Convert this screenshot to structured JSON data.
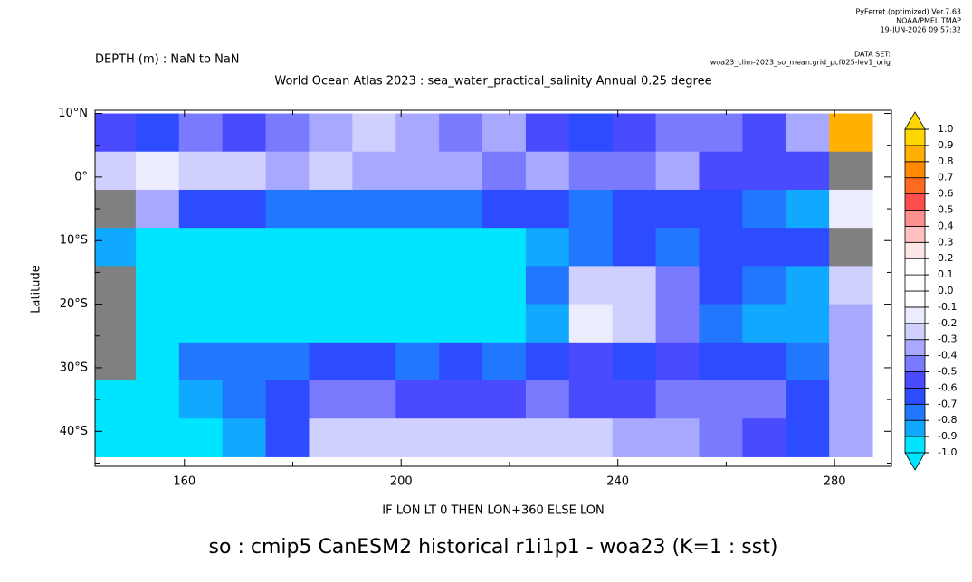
{
  "chart_data": {
    "type": "heatmap",
    "header": [
      "PyFerret (optimized) Ver.7.63",
      "NOAA/PMEL TMAP",
      "19-JUN-2026 09:57:32"
    ],
    "dataset_label": "DATA SET:",
    "dataset": "woa23_clim-2023_so_mean.grid_pcf025-lev1_orig",
    "subtitle": "DEPTH (m) : NaN to NaN",
    "title": "World Ocean Atlas 2023 : sea_water_practical_salinity Annual  0.25 degree",
    "ylabel": "Latitude",
    "xlabel": "IF LON LT 0 THEN LON+360 ELSE LON",
    "caption": "so : cmip5 CanESM2 historical r1i1p1 - woa23  (K=1 : sst)",
    "xlim": [
      143.5,
      290.5
    ],
    "ylim": [
      -45.5,
      10.5
    ],
    "xticks": [
      160,
      200,
      240,
      280
    ],
    "xminor_ticks": [
      180,
      220,
      260
    ],
    "yticks": [
      {
        "value": 10,
        "label": "10°N"
      },
      {
        "value": 0,
        "label": "0°"
      },
      {
        "value": -10,
        "label": "10°S"
      },
      {
        "value": -20,
        "label": "20°S"
      },
      {
        "value": -30,
        "label": "30°S"
      },
      {
        "value": -40,
        "label": "40°S"
      }
    ],
    "yminor_ticks": [
      5,
      -5,
      -15,
      -25,
      -35,
      -45
    ],
    "x": [
      147,
      155,
      163,
      171,
      179,
      187,
      195,
      203,
      211,
      219,
      227,
      235,
      243,
      251,
      259,
      267,
      275,
      283
    ],
    "y": [
      7,
      1,
      -5,
      -11,
      -17,
      -23,
      -29,
      -35,
      -41
    ],
    "cell_size": [
      8,
      6
    ],
    "land_color": "#808080",
    "values": [
      [
        -0.5,
        -0.6,
        -0.4,
        -0.5,
        -0.4,
        -0.3,
        -0.2,
        -0.3,
        -0.4,
        -0.3,
        -0.5,
        -0.6,
        -0.5,
        -0.4,
        -0.4,
        -0.5,
        -0.3,
        0.9
      ],
      [
        -0.2,
        -0.1,
        -0.2,
        -0.2,
        -0.3,
        -0.2,
        -0.3,
        -0.3,
        -0.3,
        -0.4,
        -0.3,
        -0.4,
        -0.4,
        -0.3,
        -0.5,
        -0.5,
        -0.5,
        null
      ],
      [
        null,
        -0.3,
        -0.6,
        -0.6,
        -0.7,
        -0.7,
        -0.7,
        -0.7,
        -0.7,
        -0.6,
        -0.6,
        -0.7,
        -0.6,
        -0.6,
        -0.6,
        -0.7,
        -0.8,
        -0.1
      ],
      [
        -0.8,
        -0.9,
        -1.0,
        -1.0,
        -1.0,
        -1.0,
        -1.0,
        -1.0,
        -1.0,
        -1.0,
        -0.8,
        -0.7,
        -0.6,
        -0.7,
        -0.6,
        -0.6,
        -0.6,
        null
      ],
      [
        null,
        -1.0,
        -1.0,
        -1.0,
        -1.0,
        -1.0,
        -1.0,
        -1.0,
        -1.0,
        -1.0,
        -0.7,
        -0.2,
        -0.2,
        -0.4,
        -0.6,
        -0.7,
        -0.8,
        -0.2
      ],
      [
        null,
        -0.9,
        -1.0,
        -1.0,
        -1.0,
        -1.0,
        -1.0,
        -1.0,
        -1.0,
        -1.0,
        -0.8,
        -0.1,
        -0.2,
        -0.4,
        -0.7,
        -0.8,
        -0.8,
        -0.3
      ],
      [
        null,
        -0.9,
        -0.7,
        -0.7,
        -0.7,
        -0.6,
        -0.6,
        -0.7,
        -0.6,
        -0.7,
        -0.6,
        -0.5,
        -0.6,
        -0.5,
        -0.6,
        -0.6,
        -0.7,
        -0.3
      ],
      [
        -0.9,
        -0.9,
        -0.8,
        -0.7,
        -0.6,
        -0.4,
        -0.4,
        -0.5,
        -0.5,
        -0.5,
        -0.4,
        -0.5,
        -0.5,
        -0.4,
        -0.4,
        -0.4,
        -0.6,
        -0.3
      ],
      [
        -0.9,
        -0.9,
        -0.9,
        -0.8,
        -0.6,
        -0.2,
        -0.2,
        -0.2,
        -0.2,
        -0.2,
        -0.2,
        -0.2,
        -0.3,
        -0.3,
        -0.4,
        -0.5,
        -0.6,
        -0.3
      ]
    ],
    "levels": [
      {
        "value": -1,
        "label": "-1.0"
      },
      -0.9,
      -0.8,
      -0.7,
      -0.6,
      -0.5,
      -0.4,
      -0.3,
      -0.2,
      -0.1,
      {
        "value": 0,
        "label": "0.0"
      },
      0.1,
      0.2,
      0.3,
      0.4,
      0.5,
      0.6,
      0.7,
      0.8,
      0.9,
      {
        "value": 1,
        "label": "1.0"
      }
    ],
    "colors": [
      "#00e5ff",
      "#11a8ff",
      "#2277ff",
      "#2e4cff",
      "#4a4aff",
      "#7a7aff",
      "#a8a8ff",
      "#d0d0ff",
      "#ececff",
      "#ffffff",
      "#ffffff",
      "#ffffff",
      "#ffe6e6",
      "#ffc0c0",
      "#ff9090",
      "#ff4c4c",
      "#ff6a20",
      "#ff8a00",
      "#ffb000",
      "#ffd700"
    ]
  }
}
